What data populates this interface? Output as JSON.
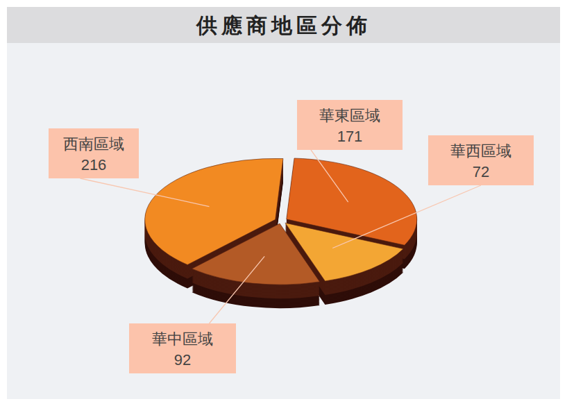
{
  "chart_data": {
    "type": "pie",
    "title": "供應商地區分佈",
    "categories": [
      "華東區域",
      "華西區域",
      "華中區域",
      "西南區域"
    ],
    "values": [
      171,
      72,
      92,
      216
    ],
    "colors": [
      "#e2641c",
      "#f3a634",
      "#b35a26",
      "#f28a22"
    ],
    "data_labels": true
  }
}
